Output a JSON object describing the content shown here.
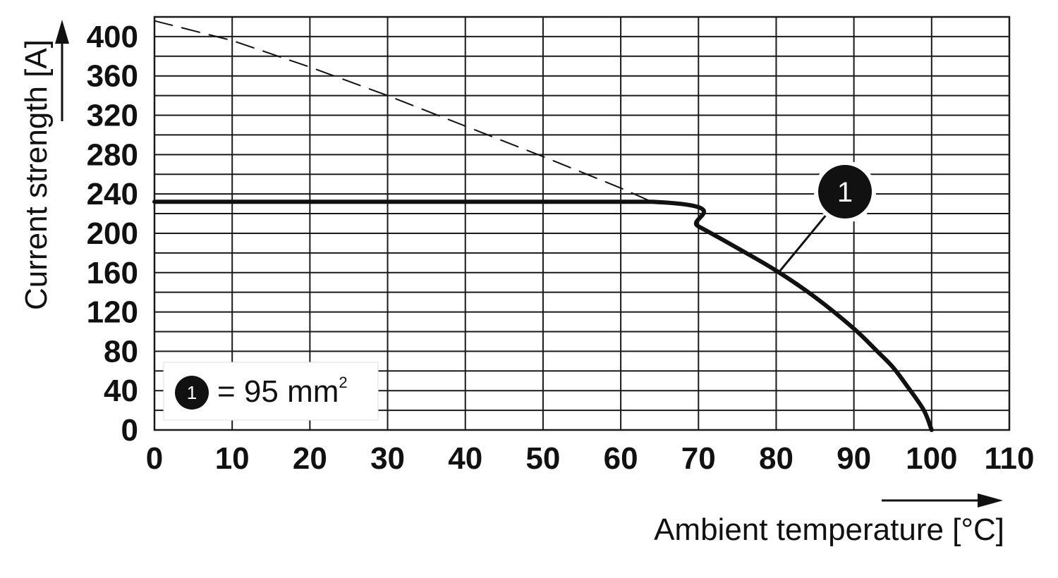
{
  "chart_data": {
    "type": "line",
    "xlabel": "Ambient temperature [°C]",
    "ylabel": "Current strength [A]",
    "xlim": [
      0,
      110
    ],
    "ylim": [
      0,
      420
    ],
    "x_ticks": [
      0,
      10,
      20,
      30,
      40,
      50,
      60,
      70,
      80,
      90,
      100,
      110
    ],
    "y_ticks": [
      0,
      40,
      80,
      120,
      160,
      200,
      240,
      280,
      320,
      360,
      400
    ],
    "grid": true,
    "x_grid_step": 10,
    "y_grid_step": 20,
    "series": [
      {
        "name": "1",
        "style": "solid",
        "x": [
          0,
          64,
          70,
          75,
          80,
          85,
          90,
          93,
          95,
          97,
          99,
          100
        ],
        "y": [
          232,
          232,
          207,
          185,
          162,
          135,
          103,
          80,
          64,
          43,
          20,
          0
        ]
      },
      {
        "style": "dashed",
        "x": [
          0,
          10,
          20,
          30,
          40,
          50,
          60,
          64
        ],
        "y": [
          416,
          396,
          369,
          340,
          309,
          278,
          246,
          232
        ]
      }
    ],
    "marker": {
      "label": "1",
      "points_to": [
        80,
        162
      ]
    },
    "legend": {
      "marker_label": "1",
      "text": "= 95 mm",
      "superscript": "2",
      "placement": "bottom-left"
    },
    "colors": {
      "line": "#111111",
      "grid": "#1a1a1a",
      "background": "#ffffff"
    }
  }
}
